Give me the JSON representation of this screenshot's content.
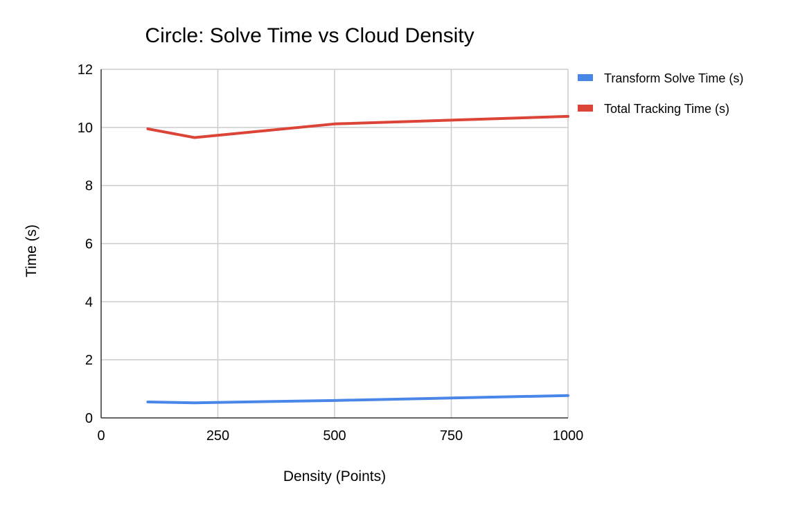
{
  "chart_data": {
    "type": "line",
    "title": "Circle: Solve Time vs Cloud Density",
    "xlabel": "Density (Points)",
    "ylabel": "Time (s)",
    "xlim": [
      0,
      1000
    ],
    "ylim": [
      0,
      12
    ],
    "xticks": [
      0,
      250,
      500,
      750,
      1000
    ],
    "yticks": [
      0,
      2,
      4,
      6,
      8,
      10,
      12
    ],
    "grid": true,
    "legend_position": "right",
    "x": [
      100,
      200,
      500,
      1000
    ],
    "series": [
      {
        "name": "Transform Solve Time (s)",
        "color": "#4a86e8",
        "values": [
          0.55,
          0.52,
          0.6,
          0.77
        ]
      },
      {
        "name": "Total Tracking Time (s)",
        "color": "#db4437",
        "values": [
          9.95,
          9.65,
          10.12,
          10.38
        ]
      }
    ]
  }
}
